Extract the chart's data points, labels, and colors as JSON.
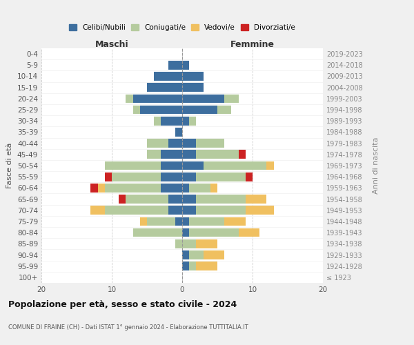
{
  "age_groups": [
    "0-4",
    "5-9",
    "10-14",
    "15-19",
    "20-24",
    "25-29",
    "30-34",
    "35-39",
    "40-44",
    "45-49",
    "50-54",
    "55-59",
    "60-64",
    "65-69",
    "70-74",
    "75-79",
    "80-84",
    "85-89",
    "90-94",
    "95-99",
    "100+"
  ],
  "birth_years": [
    "2019-2023",
    "2014-2018",
    "2009-2013",
    "2004-2008",
    "1999-2003",
    "1994-1998",
    "1989-1993",
    "1984-1988",
    "1979-1983",
    "1974-1978",
    "1969-1973",
    "1964-1968",
    "1959-1963",
    "1954-1958",
    "1949-1953",
    "1944-1948",
    "1939-1943",
    "1934-1938",
    "1929-1933",
    "1924-1928",
    "≤ 1923"
  ],
  "maschi_celibi": [
    0,
    2,
    4,
    5,
    7,
    6,
    3,
    1,
    2,
    3,
    3,
    3,
    3,
    2,
    2,
    1,
    0,
    0,
    0,
    0,
    0
  ],
  "maschi_coniugati": [
    0,
    0,
    0,
    0,
    1,
    1,
    1,
    0,
    3,
    2,
    8,
    7,
    8,
    6,
    9,
    4,
    7,
    1,
    0,
    0,
    0
  ],
  "maschi_vedovi": [
    0,
    0,
    0,
    0,
    0,
    0,
    0,
    0,
    0,
    0,
    0,
    0,
    1,
    0,
    2,
    1,
    0,
    0,
    0,
    0,
    0
  ],
  "maschi_divorziati": [
    0,
    0,
    0,
    0,
    0,
    0,
    0,
    0,
    0,
    0,
    0,
    1,
    1,
    1,
    0,
    0,
    0,
    0,
    0,
    0,
    0
  ],
  "femmine_celibi": [
    0,
    1,
    3,
    3,
    6,
    5,
    1,
    0,
    2,
    2,
    3,
    2,
    1,
    2,
    2,
    1,
    1,
    0,
    1,
    1,
    0
  ],
  "femmine_coniugati": [
    0,
    0,
    0,
    0,
    2,
    2,
    1,
    0,
    4,
    6,
    9,
    7,
    3,
    7,
    7,
    5,
    7,
    2,
    2,
    1,
    0
  ],
  "femmine_vedovi": [
    0,
    0,
    0,
    0,
    0,
    0,
    0,
    0,
    0,
    0,
    1,
    0,
    1,
    3,
    4,
    3,
    3,
    3,
    3,
    3,
    0
  ],
  "femmine_divorziati": [
    0,
    0,
    0,
    0,
    0,
    0,
    0,
    0,
    0,
    1,
    0,
    1,
    0,
    0,
    0,
    0,
    0,
    0,
    0,
    0,
    0
  ],
  "colors": {
    "celibi": "#3d6e9e",
    "coniugati": "#b5cb9e",
    "vedovi": "#f0c060",
    "divorziati": "#cc2222"
  },
  "title_main": "Popolazione per età, sesso e stato civile - 2024",
  "title_sub": "COMUNE DI FRAINE (CH) - Dati ISTAT 1° gennaio 2024 - Elaborazione TUTTITALIA.IT",
  "xlabel_left": "Maschi",
  "xlabel_right": "Femmine",
  "ylabel_left": "Fasce di età",
  "ylabel_right": "Anni di nascita",
  "xlim": 20,
  "legend_labels": [
    "Celibi/Nubili",
    "Coniugati/e",
    "Vedovi/e",
    "Divorziati/e"
  ],
  "bg_color": "#f0f0f0",
  "plot_bg_color": "#ffffff",
  "grid_color": "#cccccc"
}
